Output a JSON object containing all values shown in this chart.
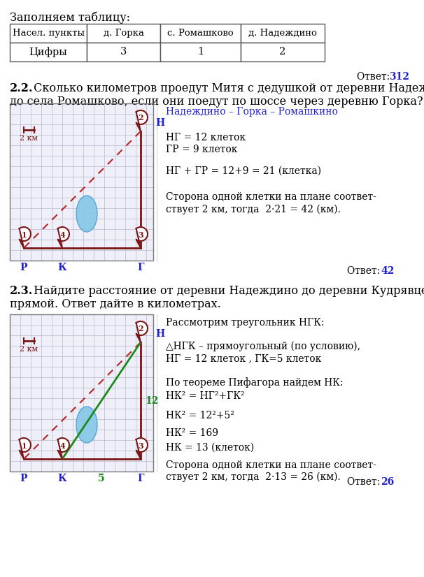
{
  "bg_color": "#ffffff",
  "blue_color": "#2222cc",
  "dark_red": "#7a1515",
  "green_color": "#1a8a1a",
  "grid_line_color": "#b8b8cc",
  "grid_bg": "#efeffa",
  "section1_header": "Заполняем таблицу:",
  "table_headers": [
    "Насел. пункты",
    "д. Горка",
    "с. Ромашково",
    "д. Надеждино"
  ],
  "table_row1": [
    "Цифры",
    "3",
    "1",
    "2"
  ],
  "answer1": "312",
  "sec2_bold": "2.2.",
  "sec2_text": " Сколько километров проедут Митя с дедушкой от деревни Надеждино",
  "sec2_text2": "до села Ромашково, если они поедут по шоссе через деревню Горка?",
  "sol2_l1": "Надеждино – Горка – Ромашкино",
  "sol2_l2": "НГ = 12 клеток",
  "sol2_l3": "ГР = 9 клеток",
  "sol2_l4": "НГ + ГР = 12+9 = 21 (клетка)",
  "sol2_l5": "Сторона одной клетки на плане соответ-",
  "sol2_l6": "ствует 2 км, тогда  2·21 = 42 (км).",
  "answer2": "42",
  "sec3_bold": "2.3.",
  "sec3_text": " Найдите расстояние от деревни Надеждино до деревни Кудрявцево по",
  "sec3_text2": "прямой. Ответ дайте в километрах.",
  "sol3_l1": "Рассмотрим треугольник НГК:",
  "sol3_l2": "△НГК – прямоугольный (по условию),",
  "sol3_l3": "НГ = 12 клеток , ГК=5 клеток",
  "sol3_l4": "По теореме Пифагора найдем НК:",
  "sol3_l5": "НК² = НГ²+ГК²",
  "sol3_l6": "НК² = 12²+5²",
  "sol3_l7": "НК² = 169",
  "sol3_l8": "НК = 13 (клеток)",
  "sol3_l9": "Сторона одной клетки на плане соответ-",
  "sol3_l10": "ствует 2 км, тогда  2·13 = 26 (км).",
  "answer3": "26"
}
